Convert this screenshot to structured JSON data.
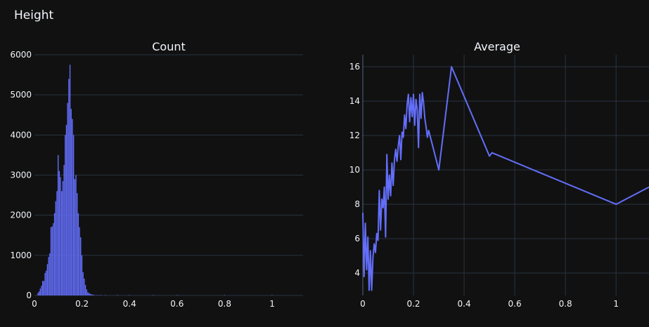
{
  "figure_title": "Height",
  "colors": {
    "background": "#111111",
    "grid": "#283442",
    "series": "#636efa",
    "text": "#f2f5fa"
  },
  "chart_data": [
    {
      "type": "bar",
      "title": "Count",
      "xlabel": "",
      "ylabel": "",
      "xlim": [
        0,
        1.13
      ],
      "ylim": [
        0,
        6000
      ],
      "xticks": [
        0,
        0.2,
        0.4,
        0.6,
        0.8,
        1
      ],
      "xtick_labels": [
        "0",
        "0.2",
        "0.4",
        "0.6",
        "0.8",
        "1"
      ],
      "yticks": [
        0,
        1000,
        2000,
        3000,
        4000,
        5000,
        6000
      ],
      "ytick_labels": [
        "0",
        "1000",
        "2000",
        "3000",
        "4000",
        "5000",
        "6000"
      ],
      "grid": true,
      "bar_width": 0.005,
      "x": [
        0.015,
        0.02,
        0.025,
        0.03,
        0.035,
        0.04,
        0.045,
        0.05,
        0.055,
        0.06,
        0.065,
        0.07,
        0.075,
        0.08,
        0.085,
        0.09,
        0.095,
        0.1,
        0.105,
        0.11,
        0.115,
        0.12,
        0.125,
        0.13,
        0.135,
        0.14,
        0.145,
        0.15,
        0.155,
        0.16,
        0.165,
        0.17,
        0.175,
        0.18,
        0.185,
        0.19,
        0.195,
        0.2,
        0.205,
        0.21,
        0.215,
        0.22,
        0.225,
        0.23,
        0.235,
        0.24,
        0.245,
        0.25,
        0.26,
        0.27,
        0.28,
        0.3,
        0.35,
        0.4,
        0.5,
        0.6,
        0.8,
        1.0
      ],
      "values": [
        60,
        100,
        170,
        240,
        360,
        360,
        560,
        620,
        780,
        960,
        1050,
        1700,
        1720,
        1800,
        2050,
        2350,
        2600,
        3500,
        3100,
        2950,
        2600,
        2850,
        3250,
        4000,
        4250,
        4800,
        5400,
        5750,
        4650,
        4400,
        4000,
        2900,
        3000,
        2550,
        2050,
        1700,
        1450,
        1000,
        580,
        420,
        260,
        150,
        80,
        60,
        40,
        30,
        20,
        15,
        10,
        8,
        6,
        5,
        4,
        3,
        3,
        2,
        2,
        1
      ]
    },
    {
      "type": "line",
      "title": "Average",
      "xlabel": "",
      "ylabel": "",
      "xlim": [
        0,
        1.13
      ],
      "ylim": [
        2.7,
        16.7
      ],
      "xticks": [
        0,
        0.2,
        0.4,
        0.6,
        0.8,
        1
      ],
      "xtick_labels": [
        "0",
        "0.2",
        "0.4",
        "0.6",
        "0.8",
        "1"
      ],
      "yticks": [
        4,
        6,
        8,
        10,
        12,
        14,
        16
      ],
      "ytick_labels": [
        "4",
        "6",
        "8",
        "10",
        "12",
        "14",
        "16"
      ],
      "grid": true,
      "series": [
        {
          "x": [
            0,
            0.005,
            0.01,
            0.015,
            0.02,
            0.025,
            0.03,
            0.035,
            0.04,
            0.045,
            0.05,
            0.055,
            0.06,
            0.065,
            0.07,
            0.075,
            0.08,
            0.085,
            0.09,
            0.095,
            0.1,
            0.105,
            0.11,
            0.115,
            0.12,
            0.125,
            0.13,
            0.135,
            0.14,
            0.145,
            0.15,
            0.155,
            0.16,
            0.165,
            0.17,
            0.175,
            0.18,
            0.185,
            0.19,
            0.195,
            0.2,
            0.205,
            0.21,
            0.215,
            0.22,
            0.225,
            0.23,
            0.235,
            0.24,
            0.245,
            0.25,
            0.255,
            0.26,
            0.3,
            0.35,
            0.5,
            0.51,
            1.0,
            1.13
          ],
          "y": [
            7.5,
            3.8,
            6.9,
            4.2,
            6.1,
            3.0,
            5.3,
            3.0,
            4.9,
            5.7,
            5.2,
            6.3,
            5.9,
            8.8,
            6.5,
            8.3,
            7.8,
            9.0,
            6.1,
            10.9,
            8.3,
            9.7,
            8.5,
            10.4,
            9.1,
            10.6,
            11.2,
            10.5,
            11.4,
            12.0,
            10.6,
            12.2,
            11.9,
            13.2,
            12.4,
            13.8,
            14.4,
            12.8,
            14.2,
            13.1,
            14.4,
            12.6,
            14.1,
            13.5,
            11.3,
            14.4,
            13.0,
            14.5,
            13.9,
            13.0,
            12.5,
            11.9,
            12.3,
            10.0,
            16.0,
            10.8,
            11.0,
            8.0,
            9.0
          ]
        }
      ]
    }
  ]
}
